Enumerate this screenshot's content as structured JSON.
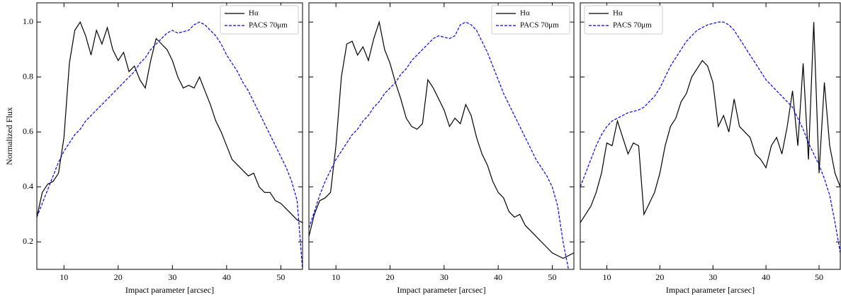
{
  "chart_data": [
    {
      "type": "line",
      "ylabel": "Normalized Flux",
      "xlabel": "Impact parameter [arcsec]",
      "xlim": [
        5,
        54
      ],
      "ylim": [
        0.1,
        1.07
      ],
      "xticks": [
        10,
        20,
        30,
        40,
        50
      ],
      "yticks": [
        0.2,
        0.4,
        0.6,
        0.8,
        {
          "value": 1,
          "label": "1.0"
        }
      ],
      "ytick_labels": true,
      "legend": "upper right",
      "x": [
        5,
        6,
        7,
        8,
        9,
        10,
        11,
        12,
        13,
        14,
        15,
        16,
        17,
        18,
        19,
        20,
        21,
        22,
        23,
        24,
        25,
        26,
        27,
        28,
        29,
        30,
        31,
        32,
        33,
        34,
        35,
        36,
        37,
        38,
        39,
        40,
        41,
        42,
        43,
        44,
        45,
        46,
        47,
        48,
        49,
        50,
        51,
        52,
        53,
        54
      ],
      "series": [
        {
          "name": "Hα",
          "color": "#000000",
          "dash": "solid",
          "values": [
            0.29,
            0.38,
            0.41,
            0.42,
            0.45,
            0.58,
            0.85,
            0.97,
            1.0,
            0.95,
            0.88,
            0.97,
            0.92,
            0.98,
            0.9,
            0.86,
            0.89,
            0.82,
            0.84,
            0.79,
            0.76,
            0.86,
            0.94,
            0.92,
            0.9,
            0.86,
            0.8,
            0.76,
            0.77,
            0.76,
            0.8,
            0.75,
            0.7,
            0.64,
            0.6,
            0.55,
            0.5,
            0.48,
            0.46,
            0.44,
            0.45,
            0.4,
            0.38,
            0.38,
            0.35,
            0.34,
            0.32,
            0.3,
            0.28,
            0.27
          ]
        },
        {
          "name": "PACS 70μm",
          "color": "#0000ff",
          "dash": "dashed",
          "values": [
            0.29,
            0.34,
            0.39,
            0.44,
            0.49,
            0.53,
            0.56,
            0.59,
            0.61,
            0.64,
            0.66,
            0.68,
            0.7,
            0.72,
            0.74,
            0.76,
            0.78,
            0.8,
            0.82,
            0.85,
            0.87,
            0.9,
            0.92,
            0.94,
            0.96,
            0.97,
            0.96,
            0.965,
            0.97,
            0.99,
            1.0,
            0.99,
            0.97,
            0.95,
            0.92,
            0.88,
            0.85,
            0.82,
            0.78,
            0.75,
            0.71,
            0.67,
            0.63,
            0.59,
            0.55,
            0.51,
            0.47,
            0.42,
            0.35,
            0.1
          ]
        }
      ]
    },
    {
      "type": "line",
      "xlabel": "Impact parameter [arcsec]",
      "xlim": [
        5,
        54
      ],
      "ylim": [
        0.1,
        1.07
      ],
      "xticks": [
        10,
        20,
        30,
        40,
        50
      ],
      "yticks": [
        0.2,
        0.4,
        0.6,
        0.8,
        1
      ],
      "ytick_labels": false,
      "legend": "upper right",
      "x": [
        5,
        6,
        7,
        8,
        9,
        10,
        11,
        12,
        13,
        14,
        15,
        16,
        17,
        18,
        19,
        20,
        21,
        22,
        23,
        24,
        25,
        26,
        27,
        28,
        29,
        30,
        31,
        32,
        33,
        34,
        35,
        36,
        37,
        38,
        39,
        40,
        41,
        42,
        43,
        44,
        45,
        46,
        47,
        48,
        49,
        50,
        51,
        52,
        53,
        54
      ],
      "series": [
        {
          "name": "Hα",
          "color": "#000000",
          "dash": "solid",
          "values": [
            0.22,
            0.3,
            0.35,
            0.36,
            0.38,
            0.55,
            0.8,
            0.92,
            0.93,
            0.88,
            0.91,
            0.86,
            0.94,
            1.0,
            0.9,
            0.85,
            0.78,
            0.72,
            0.65,
            0.62,
            0.61,
            0.63,
            0.79,
            0.76,
            0.72,
            0.68,
            0.62,
            0.65,
            0.63,
            0.7,
            0.66,
            0.58,
            0.52,
            0.48,
            0.42,
            0.38,
            0.36,
            0.31,
            0.29,
            0.3,
            0.26,
            0.24,
            0.22,
            0.2,
            0.18,
            0.16,
            0.15,
            0.14,
            0.15,
            0.16
          ]
        },
        {
          "name": "PACS 70μm",
          "color": "#0000ff",
          "dash": "dashed",
          "values": [
            0.25,
            0.31,
            0.37,
            0.42,
            0.46,
            0.5,
            0.53,
            0.56,
            0.59,
            0.61,
            0.64,
            0.66,
            0.69,
            0.71,
            0.74,
            0.76,
            0.78,
            0.81,
            0.83,
            0.86,
            0.88,
            0.9,
            0.92,
            0.94,
            0.95,
            0.945,
            0.94,
            0.95,
            0.99,
            1.0,
            0.99,
            0.97,
            0.93,
            0.89,
            0.84,
            0.79,
            0.74,
            0.7,
            0.66,
            0.62,
            0.58,
            0.54,
            0.5,
            0.47,
            0.44,
            0.4,
            0.33,
            0.2,
            0.1,
            0.05
          ]
        }
      ]
    },
    {
      "type": "line",
      "xlabel": "Impact parameter [arcsec]",
      "xlim": [
        5,
        54
      ],
      "ylim": [
        0.1,
        1.07
      ],
      "xticks": [
        10,
        20,
        30,
        40,
        50
      ],
      "yticks": [
        0.2,
        0.4,
        0.6,
        0.8,
        1
      ],
      "ytick_labels": false,
      "legend": "upper left",
      "x": [
        5,
        6,
        7,
        8,
        9,
        10,
        11,
        12,
        13,
        14,
        15,
        16,
        17,
        18,
        19,
        20,
        21,
        22,
        23,
        24,
        25,
        26,
        27,
        28,
        29,
        30,
        31,
        32,
        33,
        34,
        35,
        36,
        37,
        38,
        39,
        40,
        41,
        42,
        43,
        44,
        45,
        46,
        47,
        48,
        49,
        50,
        51,
        52,
        53,
        54
      ],
      "series": [
        {
          "name": "Hα",
          "color": "#000000",
          "dash": "solid",
          "values": [
            0.27,
            0.3,
            0.33,
            0.38,
            0.45,
            0.56,
            0.55,
            0.64,
            0.58,
            0.52,
            0.56,
            0.55,
            0.3,
            0.34,
            0.38,
            0.45,
            0.55,
            0.62,
            0.65,
            0.71,
            0.74,
            0.8,
            0.83,
            0.86,
            0.84,
            0.78,
            0.62,
            0.66,
            0.6,
            0.72,
            0.62,
            0.6,
            0.58,
            0.52,
            0.5,
            0.47,
            0.55,
            0.58,
            0.52,
            0.62,
            0.75,
            0.55,
            0.85,
            0.5,
            1.0,
            0.45,
            0.78,
            0.55,
            0.45,
            0.4
          ]
        },
        {
          "name": "PACS 70μm",
          "color": "#0000ff",
          "dash": "dashed",
          "values": [
            0.4,
            0.45,
            0.5,
            0.55,
            0.59,
            0.62,
            0.64,
            0.65,
            0.66,
            0.67,
            0.675,
            0.68,
            0.69,
            0.71,
            0.73,
            0.76,
            0.8,
            0.84,
            0.87,
            0.9,
            0.93,
            0.95,
            0.97,
            0.98,
            0.99,
            0.995,
            1.0,
            1.0,
            0.99,
            0.97,
            0.94,
            0.91,
            0.88,
            0.85,
            0.82,
            0.79,
            0.77,
            0.75,
            0.73,
            0.71,
            0.69,
            0.65,
            0.61,
            0.56,
            0.52,
            0.48,
            0.43,
            0.37,
            0.27,
            0.16
          ]
        }
      ]
    }
  ]
}
